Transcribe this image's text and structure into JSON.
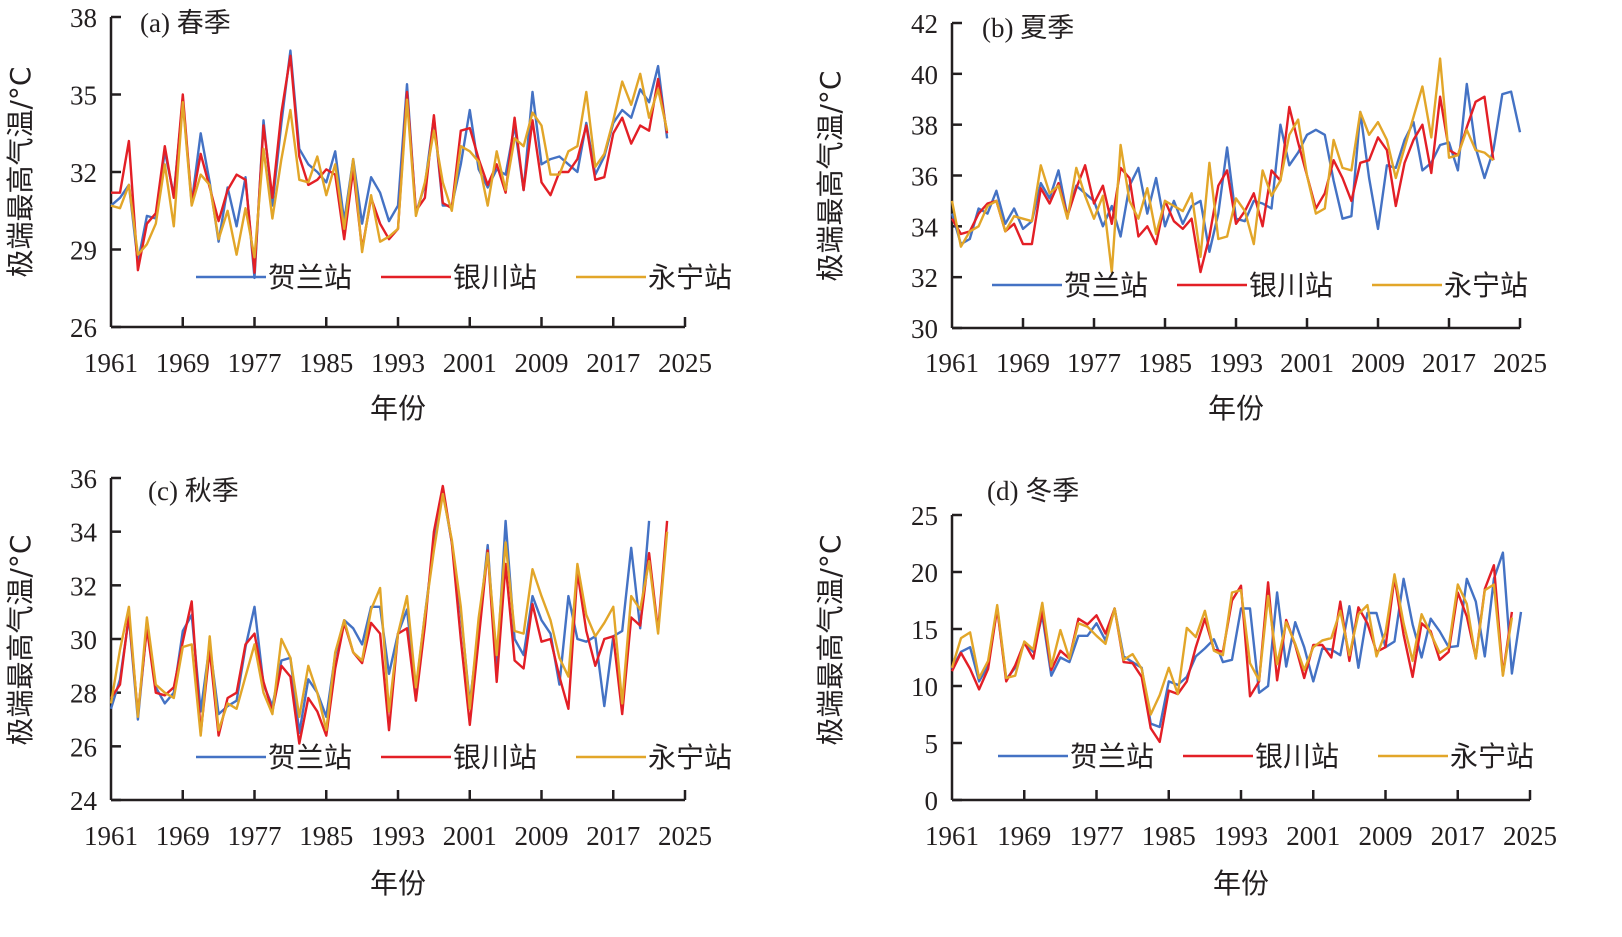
{
  "figure": {
    "legend": [
      "贺兰站",
      "银川站",
      "永宁站"
    ],
    "colors": {
      "贺兰站": "#4472c4",
      "银川站": "#e31f26",
      "永宁站": "#e2a629"
    }
  },
  "chart_data": [
    {
      "type": "line",
      "title": "(a) 春季",
      "xlabel": "年份",
      "ylabel": "极端最高气温/°C",
      "xlim": [
        1961,
        2025
      ],
      "ylim": [
        26,
        38
      ],
      "xticks": [
        "1961",
        "1969",
        "1977",
        "1985",
        "1993",
        "2001",
        "2009",
        "2017",
        "2025"
      ],
      "yticks": [
        "26",
        "29",
        "32",
        "35",
        "38"
      ],
      "legend_position": "bottom",
      "x_start": 1961,
      "series": [
        {
          "name": "贺兰站",
          "values": [
            30.7,
            31.0,
            31.5,
            28.5,
            30.3,
            30.2,
            32.8,
            31.1,
            34.8,
            30.8,
            33.5,
            31.6,
            29.3,
            31.4,
            29.9,
            31.8,
            27.9,
            34.0,
            30.7,
            33.9,
            36.7,
            32.9,
            32.3,
            32.0,
            31.6,
            32.8,
            30.1,
            32.5,
            30.0,
            31.8,
            31.2,
            30.1,
            30.7,
            35.4,
            30.4,
            31.5,
            34.1,
            30.7,
            30.7,
            32.3,
            34.4,
            32.1,
            31.4,
            32.1,
            31.9,
            33.8,
            31.3,
            35.1,
            32.3,
            32.5,
            32.6,
            32.3,
            32.0,
            33.9,
            31.9,
            32.6,
            33.9,
            34.4,
            34.1,
            35.2,
            34.7,
            36.1,
            33.3
          ]
        },
        {
          "name": "银川站",
          "values": [
            31.2,
            31.2,
            33.2,
            28.2,
            30.0,
            30.4,
            33.0,
            31.0,
            35.0,
            30.8,
            32.7,
            31.4,
            30.1,
            31.3,
            31.9,
            31.7,
            28.1,
            33.8,
            31.0,
            34.3,
            36.5,
            32.6,
            31.5,
            31.7,
            32.1,
            31.9,
            29.4,
            32.1,
            29.0,
            31.0,
            30.0,
            29.4,
            29.8,
            35.1,
            30.5,
            31.0,
            34.2,
            30.8,
            30.6,
            33.6,
            33.7,
            32.5,
            31.5,
            32.3,
            31.2,
            34.1,
            31.3,
            34.0,
            31.6,
            31.1,
            32.0,
            32.0,
            32.5,
            33.8,
            31.7,
            31.8,
            33.5,
            34.1,
            33.1,
            33.8,
            33.6,
            35.6,
            33.5
          ]
        },
        {
          "name": "永宁站",
          "values": [
            30.7,
            30.6,
            31.5,
            28.8,
            29.2,
            30.0,
            32.3,
            29.9,
            34.7,
            30.7,
            31.9,
            31.5,
            29.4,
            30.5,
            28.8,
            30.6,
            28.7,
            32.9,
            30.2,
            32.5,
            34.4,
            31.7,
            31.6,
            32.6,
            31.1,
            32.3,
            29.8,
            32.5,
            28.9,
            31.1,
            29.3,
            29.5,
            29.8,
            34.8,
            30.3,
            31.6,
            33.6,
            31.6,
            30.5,
            33.0,
            32.8,
            32.4,
            30.7,
            32.8,
            31.3,
            33.3,
            33.0,
            34.3,
            33.8,
            31.9,
            31.9,
            32.8,
            33.0,
            35.1,
            32.2,
            32.7,
            34.0,
            35.5,
            34.6,
            35.8,
            34.1,
            35.2,
            33.6
          ]
        }
      ]
    },
    {
      "type": "line",
      "title": "(b) 夏季",
      "xlabel": "年份",
      "ylabel": "极端最高气温/°C",
      "xlim": [
        1961,
        2025
      ],
      "ylim": [
        30,
        42
      ],
      "xticks": [
        "1961",
        "1969",
        "1977",
        "1985",
        "1993",
        "2001",
        "2009",
        "2017",
        "2025"
      ],
      "yticks": [
        "30",
        "32",
        "34",
        "36",
        "38",
        "40",
        "42"
      ],
      "legend_position": "bottom",
      "x_start": 1961,
      "series": [
        {
          "name": "贺兰站",
          "values": [
            34.5,
            33.3,
            33.5,
            34.7,
            34.5,
            35.4,
            34.1,
            34.7,
            33.9,
            34.2,
            35.7,
            35.1,
            36.2,
            34.4,
            35.6,
            35.3,
            35.0,
            34.0,
            34.8,
            33.6,
            35.6,
            36.3,
            34.5,
            35.9,
            34.0,
            35.0,
            34.1,
            34.8,
            35.0,
            33.0,
            34.5,
            37.1,
            34.3,
            34.2,
            35.0,
            34.9,
            34.7,
            38.0,
            36.4,
            36.9,
            37.6,
            37.8,
            37.6,
            35.8,
            34.3,
            34.4,
            38.5,
            35.9,
            33.9,
            36.4,
            36.3,
            37.4,
            38.1,
            36.2,
            36.5,
            37.2,
            37.3,
            36.2,
            39.6,
            37.1,
            35.9,
            37.0,
            39.2,
            39.3,
            37.7
          ]
        },
        {
          "name": "银川站",
          "values": [
            34.3,
            33.7,
            33.8,
            34.5,
            34.9,
            35.0,
            33.8,
            34.1,
            33.3,
            33.3,
            35.5,
            34.9,
            35.7,
            34.4,
            35.5,
            36.4,
            34.9,
            35.6,
            34.1,
            36.3,
            35.9,
            33.6,
            34.0,
            33.3,
            35.0,
            34.2,
            33.9,
            34.3,
            32.2,
            33.6,
            35.6,
            36.2,
            34.1,
            34.6,
            35.3,
            34.0,
            36.2,
            35.8,
            38.7,
            37.3,
            36.0,
            34.7,
            35.3,
            36.6,
            35.9,
            35.0,
            36.5,
            36.6,
            37.5,
            37.0,
            34.8,
            36.5,
            37.4,
            38.0,
            36.1,
            39.1,
            37.0,
            36.8,
            37.9,
            38.9,
            39.1,
            36.6
          ]
        },
        {
          "name": "永宁站",
          "values": [
            35.0,
            33.2,
            33.8,
            34.0,
            34.8,
            35.0,
            33.8,
            34.4,
            34.3,
            34.2,
            36.4,
            35.3,
            35.6,
            34.3,
            36.3,
            35.2,
            34.3,
            35.2,
            32.2,
            37.2,
            35.0,
            34.3,
            35.5,
            33.7,
            35.0,
            34.8,
            34.6,
            35.3,
            32.8,
            36.5,
            33.5,
            33.6,
            35.1,
            34.6,
            33.3,
            36.2,
            35.2,
            35.8,
            37.6,
            38.2,
            36.0,
            34.5,
            34.7,
            37.4,
            36.3,
            36.2,
            38.5,
            37.6,
            38.1,
            37.4,
            35.9,
            37.1,
            38.3,
            39.5,
            37.5,
            40.6,
            36.7,
            36.8,
            37.8,
            37.0,
            36.9,
            36.6
          ]
        }
      ]
    },
    {
      "type": "line",
      "title": "(c) 秋季",
      "xlabel": "年份",
      "ylabel": "极端最高气温/°C",
      "xlim": [
        1961,
        2025
      ],
      "ylim": [
        24,
        36
      ],
      "xticks": [
        "1961",
        "1969",
        "1977",
        "1985",
        "1993",
        "2001",
        "2009",
        "2017",
        "2025"
      ],
      "yticks": [
        "24",
        "26",
        "28",
        "30",
        "32",
        "34",
        "36"
      ],
      "legend_position": "bottom",
      "x_start": 1961,
      "series": [
        {
          "name": "贺兰站",
          "values": [
            27.4,
            28.5,
            30.8,
            27.0,
            30.5,
            28.2,
            27.6,
            28.0,
            30.3,
            30.9,
            27.3,
            29.8,
            27.2,
            27.5,
            27.7,
            29.7,
            31.2,
            28.3,
            27.5,
            29.2,
            29.3,
            26.5,
            28.5,
            28.0,
            27.1,
            29.4,
            30.7,
            30.4,
            29.8,
            31.2,
            31.2,
            28.7,
            30.2,
            31.1,
            28.1,
            30.9,
            33.5,
            35.5,
            33.6,
            31.0,
            27.6,
            30.4,
            33.5,
            28.8,
            34.4,
            30.0,
            29.4,
            31.6,
            30.7,
            30.2,
            28.3,
            31.6,
            30.0,
            29.9,
            30.1,
            27.5,
            30.1,
            30.3,
            33.4,
            30.4,
            34.4
          ]
        },
        {
          "name": "银川站",
          "values": [
            27.8,
            28.3,
            30.9,
            27.2,
            30.4,
            28.0,
            27.9,
            28.2,
            29.9,
            31.4,
            26.5,
            29.6,
            26.4,
            27.8,
            28.0,
            29.8,
            30.2,
            28.4,
            27.3,
            29.0,
            28.6,
            26.1,
            27.8,
            27.3,
            26.4,
            28.9,
            30.6,
            29.5,
            29.1,
            30.6,
            30.2,
            26.6,
            30.2,
            30.4,
            27.7,
            30.5,
            34.0,
            35.7,
            33.6,
            30.0,
            26.8,
            30.0,
            33.3,
            28.4,
            32.8,
            29.2,
            28.9,
            31.3,
            29.9,
            30.0,
            28.6,
            27.4,
            32.5,
            30.3,
            29.0,
            30.0,
            30.1,
            27.2,
            30.8,
            30.5,
            33.2,
            30.3,
            34.4
          ]
        },
        {
          "name": "永宁站",
          "values": [
            27.6,
            29.6,
            31.2,
            27.1,
            30.8,
            28.3,
            28.0,
            27.8,
            29.7,
            29.8,
            26.4,
            30.1,
            26.6,
            27.6,
            27.4,
            28.6,
            29.8,
            28.0,
            27.2,
            30.0,
            29.3,
            27.1,
            29.0,
            28.0,
            26.6,
            29.5,
            30.7,
            29.5,
            29.2,
            31.1,
            31.9,
            27.3,
            30.2,
            31.6,
            28.2,
            30.9,
            33.3,
            35.4,
            33.7,
            31.2,
            27.4,
            30.8,
            33.2,
            29.4,
            33.6,
            30.3,
            30.2,
            32.6,
            31.6,
            30.7,
            29.3,
            28.6,
            32.8,
            30.9,
            30.1,
            30.6,
            31.2,
            27.6,
            31.6,
            31.1,
            32.9,
            30.2,
            34.0
          ]
        }
      ]
    },
    {
      "type": "line",
      "title": "(d) 冬季",
      "xlabel": "年份",
      "ylabel": "极端最高气温/°C",
      "xlim": [
        1961,
        2025
      ],
      "ylim": [
        0,
        25
      ],
      "xticks": [
        "1961",
        "1969",
        "1977",
        "1985",
        "1993",
        "2001",
        "2009",
        "2017",
        "2025"
      ],
      "yticks": [
        "0",
        "5",
        "10",
        "15",
        "20",
        "25"
      ],
      "legend_position": "bottom",
      "x_start": 1961,
      "series": [
        {
          "name": "贺兰站",
          "values": [
            11.5,
            13.0,
            13.4,
            10.4,
            11.8,
            16.9,
            10.6,
            11.6,
            13.8,
            13.0,
            16.2,
            10.9,
            12.5,
            12.1,
            14.4,
            14.4,
            15.5,
            14.0,
            16.8,
            12.6,
            12.1,
            11.6,
            6.7,
            6.4,
            10.4,
            10.1,
            10.8,
            12.6,
            13.3,
            14.1,
            12.1,
            12.3,
            16.8,
            16.8,
            9.4,
            10.0,
            18.2,
            11.7,
            15.6,
            13.4,
            10.4,
            13.3,
            13.2,
            12.7,
            17.0,
            11.6,
            16.4,
            16.4,
            13.4,
            13.9,
            19.4,
            15.4,
            12.5,
            15.9,
            14.8,
            13.4,
            13.5,
            19.4,
            17.4,
            12.6,
            19.4,
            21.7,
            11.1,
            16.5
          ]
        },
        {
          "name": "银川站",
          "values": [
            11.3,
            12.9,
            11.5,
            9.7,
            11.5,
            16.8,
            10.4,
            11.8,
            13.8,
            12.4,
            16.6,
            11.4,
            13.1,
            12.4,
            15.9,
            15.4,
            16.2,
            14.6,
            16.8,
            12.1,
            12.0,
            10.8,
            6.3,
            5.1,
            9.6,
            9.3,
            10.4,
            13.4,
            15.9,
            13.2,
            13.0,
            17.5,
            18.8,
            9.1,
            10.4,
            19.1,
            10.5,
            15.8,
            13.6,
            10.7,
            13.6,
            13.6,
            12.5,
            17.4,
            12.2,
            16.9,
            15.5,
            13.0,
            13.4,
            19.5,
            14.5,
            10.8,
            15.5,
            14.8,
            12.3,
            13.0,
            18.2,
            16.1,
            12.5,
            18.5,
            20.6,
            11.0,
            16.5
          ]
        },
        {
          "name": "永宁站",
          "values": [
            11.6,
            14.2,
            14.7,
            10.7,
            12.2,
            17.1,
            10.7,
            10.9,
            13.9,
            13.2,
            17.3,
            11.7,
            14.9,
            12.4,
            15.5,
            15.2,
            14.4,
            13.7,
            16.8,
            12.3,
            12.8,
            11.5,
            7.5,
            9.2,
            11.6,
            9.3,
            15.1,
            14.3,
            16.6,
            13.1,
            12.7,
            18.2,
            18.4,
            12.0,
            10.5,
            17.9,
            11.9,
            15.6,
            13.7,
            11.4,
            13.4,
            14.0,
            14.2,
            16.6,
            12.7,
            16.3,
            17.1,
            12.6,
            14.7,
            19.8,
            15.5,
            12.2,
            16.3,
            14.6,
            12.9,
            13.4,
            18.9,
            17.2,
            12.4,
            18.4,
            18.9,
            10.9,
            16.0
          ]
        }
      ]
    }
  ]
}
